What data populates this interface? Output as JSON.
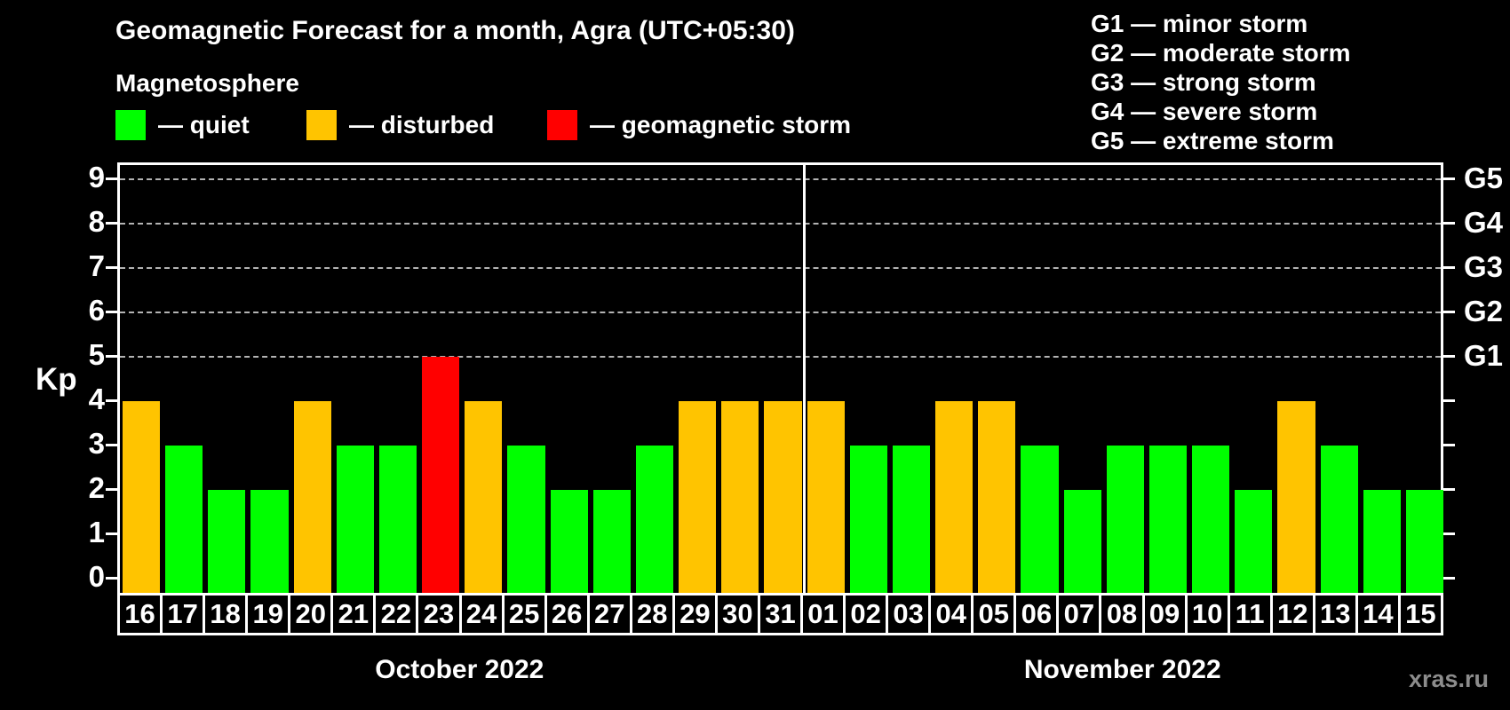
{
  "title": "Geomagnetic Forecast for a month, Agra (UTC+05:30)",
  "subtitle": "Magnetosphere",
  "legend": {
    "items": [
      {
        "key": "quiet",
        "label": "— quiet",
        "color": "#00ff00"
      },
      {
        "key": "disturbed",
        "label": "— disturbed",
        "color": "#ffc400"
      },
      {
        "key": "storm",
        "label": "— geomagnetic storm",
        "color": "#ff0000"
      }
    ]
  },
  "g_legend": [
    "G1 — minor storm",
    "G2 — moderate storm",
    "G3 — strong storm",
    "G4 — severe storm",
    "G5 — extreme storm"
  ],
  "watermark": "xras.ru",
  "chart_data": {
    "type": "bar",
    "title": "Geomagnetic Forecast for a month, Agra (UTC+05:30)",
    "ylabel": "Kp",
    "ylim": [
      0,
      9
    ],
    "yticks": [
      0,
      1,
      2,
      3,
      4,
      5,
      6,
      7,
      8,
      9
    ],
    "gridlines_at": [
      5,
      6,
      7,
      8,
      9
    ],
    "grid": "dashed",
    "legend_position": "top-left",
    "right_axis_labels": [
      {
        "value": 5,
        "label": "G1"
      },
      {
        "value": 6,
        "label": "G2"
      },
      {
        "value": 7,
        "label": "G3"
      },
      {
        "value": 8,
        "label": "G4"
      },
      {
        "value": 9,
        "label": "G5"
      }
    ],
    "status_colors": {
      "quiet": "#00ff00",
      "disturbed": "#ffc400",
      "storm": "#ff0000"
    },
    "months": [
      {
        "label": "October 2022",
        "days": [
          {
            "day": "16",
            "kp": 4,
            "status": "disturbed"
          },
          {
            "day": "17",
            "kp": 3,
            "status": "quiet"
          },
          {
            "day": "18",
            "kp": 2,
            "status": "quiet"
          },
          {
            "day": "19",
            "kp": 2,
            "status": "quiet"
          },
          {
            "day": "20",
            "kp": 4,
            "status": "disturbed"
          },
          {
            "day": "21",
            "kp": 3,
            "status": "quiet"
          },
          {
            "day": "22",
            "kp": 3,
            "status": "quiet"
          },
          {
            "day": "23",
            "kp": 5,
            "status": "storm"
          },
          {
            "day": "24",
            "kp": 4,
            "status": "disturbed"
          },
          {
            "day": "25",
            "kp": 3,
            "status": "quiet"
          },
          {
            "day": "26",
            "kp": 2,
            "status": "quiet"
          },
          {
            "day": "27",
            "kp": 2,
            "status": "quiet"
          },
          {
            "day": "28",
            "kp": 3,
            "status": "quiet"
          },
          {
            "day": "29",
            "kp": 4,
            "status": "disturbed"
          },
          {
            "day": "30",
            "kp": 4,
            "status": "disturbed"
          },
          {
            "day": "31",
            "kp": 4,
            "status": "disturbed"
          }
        ]
      },
      {
        "label": "November 2022",
        "days": [
          {
            "day": "01",
            "kp": 4,
            "status": "disturbed"
          },
          {
            "day": "02",
            "kp": 3,
            "status": "quiet"
          },
          {
            "day": "03",
            "kp": 3,
            "status": "quiet"
          },
          {
            "day": "04",
            "kp": 4,
            "status": "disturbed"
          },
          {
            "day": "05",
            "kp": 4,
            "status": "disturbed"
          },
          {
            "day": "06",
            "kp": 3,
            "status": "quiet"
          },
          {
            "day": "07",
            "kp": 2,
            "status": "quiet"
          },
          {
            "day": "08",
            "kp": 3,
            "status": "quiet"
          },
          {
            "day": "09",
            "kp": 3,
            "status": "quiet"
          },
          {
            "day": "10",
            "kp": 3,
            "status": "quiet"
          },
          {
            "day": "11",
            "kp": 2,
            "status": "quiet"
          },
          {
            "day": "12",
            "kp": 4,
            "status": "disturbed"
          },
          {
            "day": "13",
            "kp": 3,
            "status": "quiet"
          },
          {
            "day": "14",
            "kp": 2,
            "status": "quiet"
          },
          {
            "day": "15",
            "kp": 2,
            "status": "quiet"
          }
        ]
      }
    ]
  }
}
